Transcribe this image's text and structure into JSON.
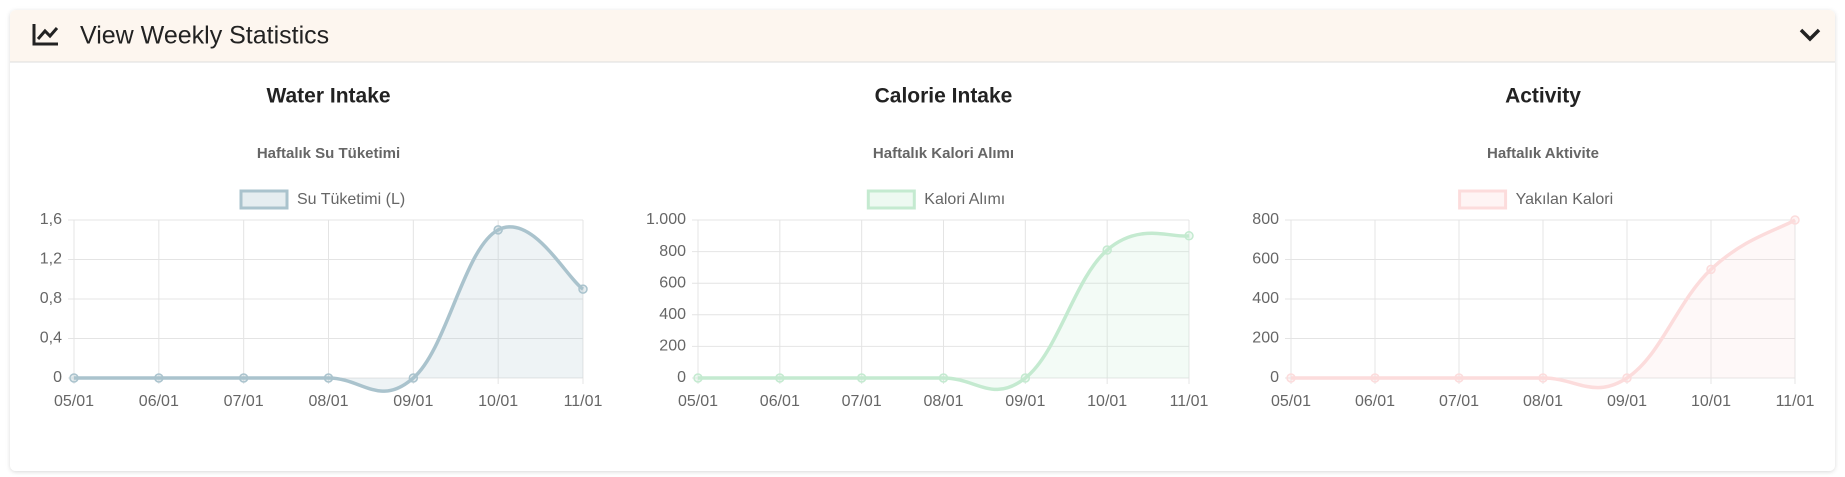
{
  "header": {
    "title": "View Weekly Statistics"
  },
  "panels": [
    {
      "heading": "Water Intake",
      "chart_data": {
        "type": "line",
        "title": "Haftalık Su Tüketimi",
        "categories": [
          "05/01",
          "06/01",
          "07/01",
          "08/01",
          "09/01",
          "10/01",
          "11/01"
        ],
        "series": [
          {
            "name": "Su Tüketimi (L)",
            "color": "#aac3cd",
            "values": [
              0,
              0,
              0,
              0,
              0,
              1.5,
              0.9
            ]
          }
        ],
        "ylim": [
          0,
          1.6
        ],
        "yticks": [
          0,
          {
            "value": 0.4,
            "label": "0,4"
          },
          {
            "value": 0.8,
            "label": "0,8"
          },
          {
            "value": 1.2,
            "label": "1,2"
          },
          {
            "value": 1.6,
            "label": "1,6"
          }
        ],
        "grid": true,
        "fill": true
      }
    },
    {
      "heading": "Calorie Intake",
      "chart_data": {
        "type": "line",
        "title": "Haftalık Kalori Alımı",
        "categories": [
          "05/01",
          "06/01",
          "07/01",
          "08/01",
          "09/01",
          "10/01",
          "11/01"
        ],
        "series": [
          {
            "name": "Kalori Alımı",
            "color": "#c4ead0",
            "values": [
              0,
              0,
              0,
              0,
              0,
              810,
              900
            ]
          }
        ],
        "ylim": [
          0,
          1000
        ],
        "yticks": [
          0,
          200,
          400,
          600,
          800,
          {
            "value": 1000,
            "label": "1.000"
          }
        ],
        "grid": true,
        "fill": true
      }
    },
    {
      "heading": "Activity",
      "chart_data": {
        "type": "line",
        "title": "Haftalık Aktivite",
        "categories": [
          "05/01",
          "06/01",
          "07/01",
          "08/01",
          "09/01",
          "10/01",
          "11/01"
        ],
        "series": [
          {
            "name": "Yakılan Kalori",
            "color": "#fcdcdc",
            "values": [
              0,
              0,
              0,
              0,
              0,
              550,
              800
            ]
          }
        ],
        "ylim": [
          0,
          800
        ],
        "yticks": [
          0,
          200,
          400,
          600,
          800
        ],
        "grid": true,
        "fill": true
      }
    }
  ]
}
